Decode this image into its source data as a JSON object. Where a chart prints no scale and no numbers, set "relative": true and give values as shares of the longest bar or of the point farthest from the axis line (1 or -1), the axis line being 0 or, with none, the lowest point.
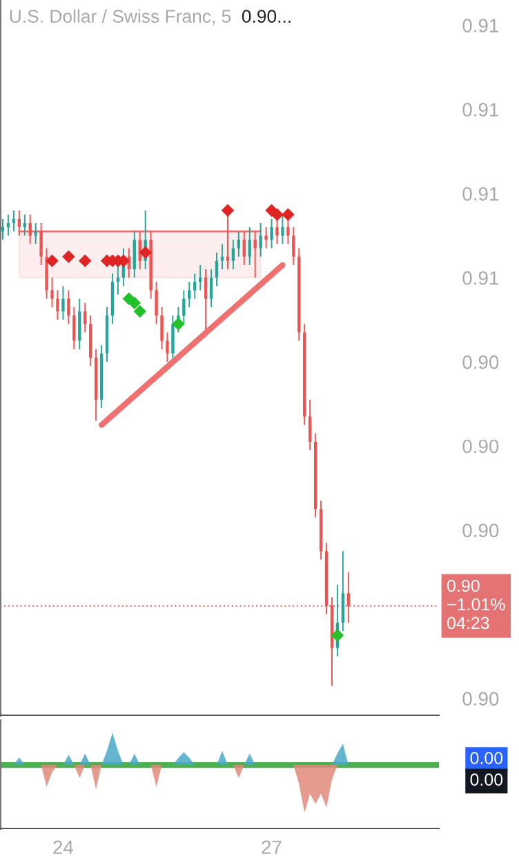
{
  "chart_data": [
    {
      "type": "candlestick",
      "title": "U.S. Dollar / Swiss Franc, 5",
      "categories": [
        null,
        null,
        null,
        null,
        null,
        null,
        null,
        null,
        null,
        null,
        null,
        "24",
        null,
        null,
        null,
        null,
        null,
        null,
        null,
        null,
        null,
        null,
        null,
        null,
        null,
        null,
        null,
        null,
        null,
        null,
        null,
        null,
        null,
        null,
        null,
        null,
        null,
        null,
        null,
        null,
        null,
        null,
        null,
        null,
        null,
        null,
        null,
        null,
        null,
        "27",
        null,
        null,
        null,
        null,
        null,
        null,
        null,
        null,
        null,
        null,
        null,
        null,
        null,
        null,
        null,
        null,
        null,
        null,
        null,
        null,
        null,
        null,
        null,
        null,
        null,
        null,
        null,
        null,
        null,
        null
      ],
      "ohlc": [
        [
          0.9071,
          0.9074,
          0.9069,
          0.9072
        ],
        [
          0.9072,
          0.9075,
          0.907,
          0.9073
        ],
        [
          0.9073,
          0.9076,
          0.9071,
          0.9074
        ],
        [
          0.9074,
          0.9076,
          0.907,
          0.9072
        ],
        [
          0.9072,
          0.9075,
          0.907,
          0.9073
        ],
        [
          0.9073,
          0.9075,
          0.9068,
          0.907
        ],
        [
          0.907,
          0.9073,
          0.9068,
          0.9071
        ],
        [
          0.9071,
          0.9073,
          0.9063,
          0.9065
        ],
        [
          0.9065,
          0.9067,
          0.9055,
          0.9057
        ],
        [
          0.9057,
          0.906,
          0.9053,
          0.9055
        ],
        [
          0.9055,
          0.9057,
          0.905,
          0.9052
        ],
        [
          0.9052,
          0.9058,
          0.905,
          0.9055
        ],
        [
          0.9055,
          0.9057,
          0.9049,
          0.9051
        ],
        [
          0.9051,
          0.9053,
          0.9043,
          0.9045
        ],
        [
          0.9045,
          0.9055,
          0.9043,
          0.9052
        ],
        [
          0.9052,
          0.9054,
          0.9047,
          0.9049
        ],
        [
          0.9049,
          0.9051,
          0.9039,
          0.9041
        ],
        [
          0.9041,
          0.9043,
          0.9026,
          0.9031
        ],
        [
          0.9031,
          0.9044,
          0.9029,
          0.9042
        ],
        [
          0.9042,
          0.9053,
          0.904,
          0.9051
        ],
        [
          0.9051,
          0.9061,
          0.9049,
          0.9059
        ],
        [
          0.9059,
          0.9063,
          0.9056,
          0.906
        ],
        [
          0.906,
          0.9067,
          0.9058,
          0.9065
        ],
        [
          0.9065,
          0.9067,
          0.906,
          0.9062
        ],
        [
          0.9062,
          0.9071,
          0.906,
          0.9069
        ],
        [
          0.9069,
          0.9071,
          0.9062,
          0.9064
        ],
        [
          0.9064,
          0.9076,
          0.9062,
          0.9069
        ],
        [
          0.9069,
          0.9071,
          0.9055,
          0.9057
        ],
        [
          0.9057,
          0.9059,
          0.9049,
          0.9051
        ],
        [
          0.9051,
          0.9053,
          0.9043,
          0.9045
        ],
        [
          0.9045,
          0.9047,
          0.904,
          0.9042
        ],
        [
          0.9042,
          0.9051,
          0.904,
          0.9049
        ],
        [
          0.9049,
          0.9053,
          0.9047,
          0.9051
        ],
        [
          0.9051,
          0.9057,
          0.9049,
          0.9055
        ],
        [
          0.9055,
          0.9059,
          0.9053,
          0.9057
        ],
        [
          0.9057,
          0.9061,
          0.9055,
          0.9059
        ],
        [
          0.9059,
          0.9063,
          0.9057,
          0.906
        ],
        [
          0.906,
          0.9062,
          0.9046,
          0.9055
        ],
        [
          0.9055,
          0.9062,
          0.9053,
          0.906
        ],
        [
          0.906,
          0.9066,
          0.9058,
          0.9064
        ],
        [
          0.9064,
          0.9068,
          0.9062,
          0.9065
        ],
        [
          0.9065,
          0.9077,
          0.9062,
          0.9064
        ],
        [
          0.9064,
          0.9069,
          0.9062,
          0.9067
        ],
        [
          0.9067,
          0.9071,
          0.9065,
          0.9069
        ],
        [
          0.9069,
          0.9071,
          0.9063,
          0.9065
        ],
        [
          0.9065,
          0.9072,
          0.9063,
          0.9069
        ],
        [
          0.9069,
          0.9071,
          0.906,
          0.9067
        ],
        [
          0.9067,
          0.9073,
          0.9065,
          0.907
        ],
        [
          0.907,
          0.9072,
          0.9067,
          0.9069
        ],
        [
          0.9069,
          0.9074,
          0.9067,
          0.9072
        ],
        [
          0.9072,
          0.9076,
          0.9068,
          0.907
        ],
        [
          0.907,
          0.9075,
          0.9068,
          0.9072
        ],
        [
          0.9072,
          0.9075,
          0.9068,
          0.907
        ],
        [
          0.907,
          0.9072,
          0.9063,
          0.9065
        ],
        [
          0.9065,
          0.9067,
          0.9045,
          0.9047
        ],
        [
          0.9047,
          0.9049,
          0.9025,
          0.9027
        ],
        [
          0.9027,
          0.9031,
          0.9019,
          0.9021
        ],
        [
          0.9021,
          0.9023,
          0.9003,
          0.9005
        ],
        [
          0.9005,
          0.9007,
          0.8993,
          0.8995
        ],
        [
          0.8995,
          0.8997,
          0.898,
          0.8982
        ],
        [
          0.8982,
          0.8984,
          0.8963,
          0.8972
        ],
        [
          0.8972,
          0.8987,
          0.897,
          0.8978
        ],
        [
          0.8978,
          0.8995,
          0.8976,
          0.8985
        ],
        [
          0.8985,
          0.899,
          0.8978,
          0.8982
        ],
        null,
        null,
        null,
        null,
        null,
        null,
        null,
        null,
        null,
        null,
        null,
        null,
        null,
        null,
        null,
        null
      ],
      "colors": [
        "#26a69a",
        "#26a69a",
        "#26a69a",
        "#ef5350",
        "#26a69a",
        "#ef5350",
        "#26a69a",
        "#ef5350",
        "#ef5350",
        "#ef5350",
        "#ef5350",
        "#26a69a",
        "#ef5350",
        "#ef5350",
        "#26a69a",
        "#ef5350",
        "#ef5350",
        "#ef5350",
        "#26a69a",
        "#26a69a",
        "#26a69a",
        "#26a69a",
        "#26a69a",
        "#ef5350",
        "#26a69a",
        "#ef5350",
        "#26a69a",
        "#ef5350",
        "#ef5350",
        "#ef5350",
        "#ef5350",
        "#26a69a",
        "#26a69a",
        "#26a69a",
        "#26a69a",
        "#26a69a",
        "#26a69a",
        "#ef5350",
        "#26a69a",
        "#26a69a",
        "#26a69a",
        "#ef5350",
        "#26a69a",
        "#26a69a",
        "#ef5350",
        "#26a69a",
        "#ef5350",
        "#26a69a",
        "#ef5350",
        "#26a69a",
        "#ef5350",
        "#26a69a",
        "#ef5350",
        "#ef5350",
        "#ef5350",
        "#ef5350",
        "#ef5350",
        "#ef5350",
        "#ef5350",
        "#ef5350",
        "#ef5350",
        "#26a69a",
        "#26a69a",
        "#ef5350",
        null,
        null,
        null,
        null,
        null,
        null,
        null,
        null,
        null,
        null,
        null,
        null,
        null,
        null,
        null,
        null
      ],
      "series": [
        {
          "type": "line",
          "color": "#e57373",
          "upper": [
            null,
            null,
            null,
            0.9071,
            0.9071,
            0.9071,
            0.9071,
            0.9071,
            0.9071,
            0.9071,
            0.9071,
            0.9071,
            0.9071,
            0.9071,
            0.9071,
            0.9071,
            0.9071,
            0.9071,
            0.9071,
            0.9071,
            0.9071,
            0.9071,
            0.9071,
            0.9071,
            0.9071,
            0.9071,
            0.9071,
            0.9071,
            0.9071,
            0.9071,
            0.9071,
            0.9071,
            0.9071,
            0.9071,
            0.9071,
            0.9071,
            0.9071,
            0.9071,
            0.9071,
            0.9071,
            0.9071,
            0.9071,
            0.9071,
            0.9071,
            0.9071,
            0.9071,
            0.9071,
            0.9071,
            null,
            null,
            null,
            null,
            null,
            null,
            null,
            null,
            null,
            null,
            null,
            null,
            null,
            null,
            null,
            null,
            null,
            null,
            null,
            null,
            null,
            null,
            null,
            null,
            null,
            null,
            null,
            null,
            null,
            null,
            null,
            null
          ],
          "values": [
            null,
            null,
            null,
            0.9071,
            0.9071,
            0.9071,
            0.9071,
            0.9071,
            0.9071,
            0.9071,
            0.9071,
            0.9071,
            0.9071,
            0.9071,
            0.9071,
            0.9071,
            0.9071,
            0.9071,
            0.9071,
            0.9071,
            0.9071,
            0.9071,
            0.9071,
            0.9071,
            0.9071,
            0.9071,
            0.9071,
            0.9071,
            0.9071,
            0.9071,
            0.9071,
            0.9071,
            0.9071,
            0.9071,
            0.9071,
            0.9071,
            0.9071,
            0.9071,
            0.9071,
            0.9071,
            0.9071,
            0.9071,
            0.9071,
            0.9071,
            0.9071,
            0.9071,
            0.9071,
            0.9071,
            null,
            null,
            null,
            null,
            null,
            null,
            null,
            null,
            null,
            null,
            null,
            null,
            null,
            null,
            null,
            null,
            null,
            null,
            null,
            null,
            null,
            null,
            null,
            null,
            null,
            null,
            null,
            null,
            null,
            null,
            null,
            null
          ],
          "lower": [
            null,
            null,
            null,
            0.906,
            0.906,
            0.906,
            0.906,
            0.906,
            0.906,
            0.906,
            0.906,
            0.906,
            0.906,
            0.906,
            0.906,
            0.906,
            0.906,
            0.906,
            0.906,
            0.906,
            0.906,
            0.906,
            0.906,
            0.906,
            0.906,
            0.906,
            0.906,
            0.906,
            0.906,
            0.906,
            0.906,
            0.906,
            0.906,
            0.906,
            0.906,
            0.906,
            0.906,
            0.906,
            0.906,
            0.906,
            0.906,
            0.906,
            0.906,
            0.906,
            0.906,
            0.906,
            0.906,
            0.906,
            null,
            null,
            null,
            null,
            null,
            null,
            null,
            null,
            null,
            null,
            null,
            null,
            null,
            null,
            null,
            null,
            null,
            null,
            null,
            null,
            null,
            null,
            null,
            null,
            null,
            null,
            null,
            null,
            null,
            null,
            null,
            null
          ]
        },
        {
          "type": "line",
          "color": "#f07070",
          "values": [
            null,
            null,
            null,
            null,
            null,
            null,
            null,
            null,
            null,
            null,
            null,
            null,
            null,
            null,
            null,
            null,
            null,
            null,
            0.9025,
            null,
            null,
            null,
            null,
            null,
            null,
            null,
            null,
            null,
            null,
            null,
            null,
            null,
            null,
            null,
            null,
            null,
            null,
            null,
            null,
            null,
            null,
            null,
            null,
            null,
            null,
            null,
            null,
            null,
            null,
            null,
            null,
            0.9063,
            null,
            null,
            null,
            null,
            null,
            null,
            null,
            null,
            null,
            null,
            null,
            null,
            null,
            null,
            null,
            null,
            null,
            null,
            null,
            null,
            null,
            null,
            null,
            null,
            null,
            null,
            null,
            null
          ]
        },
        {
          "type": "scatter",
          "color": "#e02424",
          "marker": "diamond",
          "values": [
            null,
            null,
            null,
            null,
            null,
            null,
            null,
            null,
            null,
            0.9064,
            null,
            null,
            0.9065,
            null,
            null,
            0.9064,
            null,
            null,
            null,
            0.9064,
            0.9064,
            0.9064,
            0.9064,
            null,
            null,
            null,
            0.9066,
            null,
            null,
            null,
            null,
            null,
            null,
            null,
            null,
            null,
            null,
            null,
            null,
            null,
            null,
            0.9076,
            null,
            null,
            null,
            null,
            null,
            null,
            null,
            0.9076,
            0.9075,
            null,
            0.9075,
            null,
            null,
            null,
            null,
            null,
            null,
            null,
            null,
            null,
            null,
            null,
            null,
            null,
            null,
            null,
            null,
            null,
            null,
            null,
            null,
            null,
            null,
            null,
            null,
            null,
            null,
            null
          ]
        },
        {
          "type": "scatter",
          "color": "#22c02a",
          "marker": "diamond",
          "values": [
            null,
            null,
            null,
            null,
            null,
            null,
            null,
            null,
            null,
            null,
            null,
            null,
            null,
            null,
            null,
            null,
            null,
            null,
            null,
            null,
            null,
            null,
            null,
            0.9055,
            0.9054,
            0.9052,
            null,
            null,
            null,
            null,
            null,
            null,
            0.9049,
            null,
            null,
            null,
            null,
            null,
            null,
            null,
            null,
            null,
            null,
            null,
            null,
            null,
            null,
            null,
            null,
            null,
            null,
            null,
            null,
            null,
            null,
            null,
            null,
            null,
            null,
            null,
            null,
            0.8975,
            null,
            null,
            null,
            null,
            null,
            null,
            null,
            null,
            null,
            null,
            null,
            null,
            null,
            null,
            null,
            null,
            null,
            null
          ]
        }
      ],
      "ref_lines": [
        {
          "axis": "y",
          "value": 0.8982,
          "color": "#e57373",
          "line_style": "dotted"
        }
      ],
      "annotations": [
        "0.90...",
        "0.90\n−1.01%\n04:23"
      ],
      "ylim": [
        0.8956,
        0.9126
      ],
      "yticks": [
        {
          "value": 0.912,
          "label": "0.91"
        },
        {
          "value": 0.91,
          "label": "0.91"
        },
        {
          "value": 0.908,
          "label": "0.91"
        },
        {
          "value": 0.906,
          "label": "0.91"
        },
        {
          "value": 0.904,
          "label": "0.90"
        },
        {
          "value": 0.902,
          "label": "0.90"
        },
        {
          "value": 0.9,
          "label": "0.90"
        },
        {
          "value": 0.896,
          "label": "0.90"
        }
      ],
      "tick_labels": "y",
      "grid": false,
      "legend": false
    },
    {
      "type": "area",
      "relative": true,
      "categories": [
        null,
        null,
        null,
        null,
        null,
        null,
        null,
        null,
        null,
        null,
        null,
        "24",
        null,
        null,
        null,
        null,
        null,
        null,
        null,
        null,
        null,
        null,
        null,
        null,
        null,
        null,
        null,
        null,
        null,
        null,
        null,
        null,
        null,
        null,
        null,
        null,
        null,
        null,
        null,
        null,
        null,
        null,
        null,
        null,
        null,
        null,
        null,
        null,
        null,
        "27",
        null,
        null,
        null,
        null,
        null,
        null,
        null,
        null,
        null,
        null,
        null,
        null,
        null,
        null,
        null,
        null,
        null,
        null,
        null,
        null,
        null,
        null,
        null,
        null,
        null,
        null,
        null,
        null,
        null,
        null
      ],
      "series": [
        {
          "color": "#4aa8c8",
          "values": [
            0,
            0,
            0,
            0.16,
            0,
            0,
            0,
            0,
            0,
            0,
            0,
            0,
            0.22,
            0,
            0,
            0.24,
            0,
            0,
            0,
            0.3,
            0.68,
            0.3,
            0,
            0,
            0.24,
            0,
            0,
            0,
            0,
            0,
            0,
            0,
            0.15,
            0.27,
            0.15,
            0,
            0,
            0,
            0,
            0,
            0.3,
            0,
            0,
            0,
            0,
            0.24,
            0,
            0,
            0,
            0,
            0,
            0,
            0,
            0,
            0,
            0,
            0,
            0,
            0,
            0,
            0,
            0.25,
            0.45,
            0,
            null,
            null,
            null,
            null,
            null,
            null,
            null,
            null,
            null,
            null,
            null,
            null,
            null,
            null,
            null,
            null
          ]
        },
        {
          "color": "#e08a7a",
          "values": [
            0,
            0,
            0,
            0,
            0,
            0,
            0,
            0,
            -0.46,
            -0.15,
            0,
            0,
            0,
            0,
            -0.27,
            0,
            0,
            -0.51,
            0,
            0,
            0,
            0,
            0,
            0,
            0,
            0,
            0,
            0,
            -0.46,
            0,
            0,
            0,
            0,
            0,
            0,
            0,
            0,
            0,
            0,
            0,
            0,
            0,
            0,
            -0.27,
            0,
            0,
            0,
            0,
            0,
            0,
            0,
            0,
            0,
            0,
            -0.4,
            -1,
            -0.6,
            -0.82,
            -0.6,
            -0.9,
            -0.3,
            0,
            0,
            0,
            null,
            null,
            null,
            null,
            null,
            null,
            null,
            null,
            null,
            null,
            null,
            null,
            null,
            null,
            null,
            null
          ]
        }
      ],
      "ref_lines": [
        {
          "axis": "y",
          "value": 0,
          "color": "#4caf50",
          "line_style": "solid"
        }
      ],
      "annotations": [
        "0.00",
        "0.00"
      ],
      "tick_labels": "x",
      "grid": false,
      "legend": false
    }
  ]
}
